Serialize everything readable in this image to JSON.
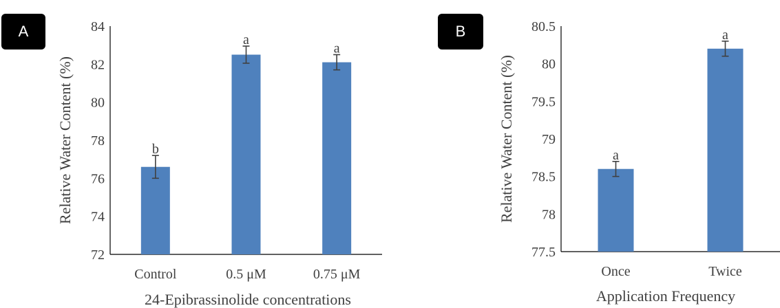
{
  "chart_data": [
    {
      "panel_label": "A",
      "type": "bar",
      "categories": [
        "Control",
        "0.5 μM",
        "0.75 μM"
      ],
      "values": [
        76.6,
        82.5,
        82.1
      ],
      "errors": [
        0.6,
        0.45,
        0.4
      ],
      "letters": [
        "b",
        "a",
        "a"
      ],
      "yticks": [
        "72",
        "74",
        "76",
        "78",
        "80",
        "82",
        "84"
      ],
      "ylim": [
        72,
        84
      ],
      "xlabel": "24-Epibrassinolide concentrations",
      "ylabel": "Relative Water Content (%)",
      "bar_color": "#4f81bd",
      "error_color": "#404040",
      "grid": false
    },
    {
      "panel_label": "B",
      "type": "bar",
      "categories": [
        "Once",
        "Twice"
      ],
      "values": [
        78.6,
        80.2
      ],
      "errors": [
        0.1,
        0.1
      ],
      "letters": [
        "a",
        "a"
      ],
      "yticks": [
        "77.5",
        "78",
        "78.5",
        "79",
        "79.5",
        "80",
        "80.5"
      ],
      "ylim": [
        77.5,
        80.5
      ],
      "xlabel": "Application Frequency",
      "ylabel": "Relative Water Content (%)",
      "bar_color": "#4f81bd",
      "error_color": "#404040",
      "grid": false
    }
  ]
}
